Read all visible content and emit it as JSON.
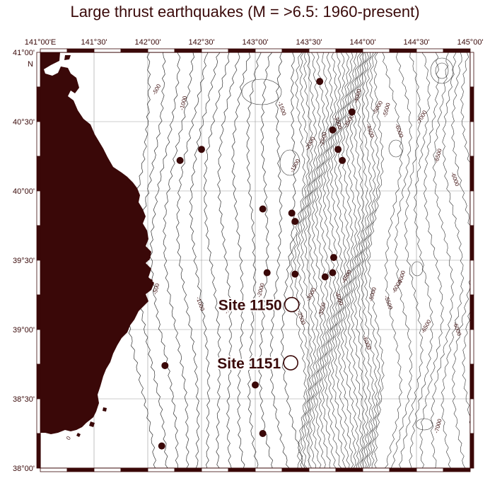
{
  "title": "Large thrust earthquakes (M = >6.5: 1960-present)",
  "colors": {
    "land": "#3a0808",
    "frame": "#3a0808",
    "contour": "#333333",
    "grid": "#999999",
    "text": "#3a0a0a"
  },
  "axes": {
    "lon_labels": [
      "141°00'E",
      "141°30'",
      "142°00'",
      "142°30'",
      "143°00'",
      "143°30'",
      "144°00'",
      "144°30'",
      "145°00'"
    ],
    "lat_labels": [
      "41°00'",
      "40°30'",
      "40°00'",
      "39°30'",
      "39°00'",
      "38°30'",
      "38°00'"
    ],
    "north_marker": "N",
    "lon_range": [
      141.0,
      145.0
    ],
    "lat_range": [
      38.0,
      41.0
    ]
  },
  "sites": [
    {
      "label": "Site 1150",
      "lon": 143.34,
      "lat": 39.18
    },
    {
      "label": "Site 1151",
      "lon": 143.33,
      "lat": 38.76
    }
  ],
  "earthquakes": [
    {
      "lon": 143.6,
      "lat": 40.79
    },
    {
      "lon": 143.9,
      "lat": 40.57
    },
    {
      "lon": 143.72,
      "lat": 40.44
    },
    {
      "lon": 143.77,
      "lat": 40.3
    },
    {
      "lon": 143.81,
      "lat": 40.22
    },
    {
      "lon": 142.5,
      "lat": 40.3
    },
    {
      "lon": 142.3,
      "lat": 40.22
    },
    {
      "lon": 143.07,
      "lat": 39.87
    },
    {
      "lon": 143.34,
      "lat": 39.84
    },
    {
      "lon": 143.37,
      "lat": 39.78
    },
    {
      "lon": 143.73,
      "lat": 39.52
    },
    {
      "lon": 143.11,
      "lat": 39.41
    },
    {
      "lon": 143.37,
      "lat": 39.4
    },
    {
      "lon": 143.72,
      "lat": 39.41
    },
    {
      "lon": 143.65,
      "lat": 39.38
    },
    {
      "lon": 142.16,
      "lat": 38.74
    },
    {
      "lon": 143.0,
      "lat": 38.6
    },
    {
      "lon": 143.07,
      "lat": 38.25
    },
    {
      "lon": 142.13,
      "lat": 38.16
    }
  ],
  "contour_labels": [
    {
      "text": "-500",
      "lon": 142.07,
      "lat": 40.69
    },
    {
      "text": "-1000",
      "lon": 142.33,
      "lat": 40.58
    },
    {
      "text": "-1500",
      "lon": 143.21,
      "lat": 40.64
    },
    {
      "text": "-2000",
      "lon": 143.49,
      "lat": 40.29
    },
    {
      "text": "-2500",
      "lon": 143.63,
      "lat": 40.32
    },
    {
      "text": "-3000",
      "lon": 143.73,
      "lat": 40.54
    },
    {
      "text": "-3500",
      "lon": 143.85,
      "lat": 40.45
    },
    {
      "text": "-4000",
      "lon": 143.95,
      "lat": 40.63
    },
    {
      "text": "-4500",
      "lon": 144.03,
      "lat": 40.48
    },
    {
      "text": "-5000",
      "lon": 144.12,
      "lat": 40.55
    },
    {
      "text": "-5500",
      "lon": 144.22,
      "lat": 40.53
    },
    {
      "text": "-6000",
      "lon": 144.3,
      "lat": 40.48
    },
    {
      "text": "-7000",
      "lon": 144.53,
      "lat": 40.48
    },
    {
      "text": "-6500",
      "lon": 144.7,
      "lat": 40.2
    },
    {
      "text": "-6000",
      "lon": 144.82,
      "lat": 40.13
    },
    {
      "text": "-1500",
      "lon": 143.35,
      "lat": 40.13
    },
    {
      "text": "-500",
      "lon": 142.08,
      "lat": 39.25
    },
    {
      "text": "-1000",
      "lon": 142.45,
      "lat": 39.23
    },
    {
      "text": "-1500",
      "lon": 142.74,
      "lat": 39.11
    },
    {
      "text": "-2000",
      "lon": 143.05,
      "lat": 39.23
    },
    {
      "text": "-2500",
      "lon": 143.39,
      "lat": 39.13
    },
    {
      "text": "-3000",
      "lon": 143.5,
      "lat": 39.2
    },
    {
      "text": "-3500",
      "lon": 143.62,
      "lat": 39.09
    },
    {
      "text": "-4000",
      "lon": 143.74,
      "lat": 39.27
    },
    {
      "text": "-4500",
      "lon": 143.83,
      "lat": 39.33
    },
    {
      "text": "-5000",
      "lon": 144.09,
      "lat": 39.2
    },
    {
      "text": "-5500",
      "lon": 144.2,
      "lat": 39.24
    },
    {
      "text": "-6000",
      "lon": 144.3,
      "lat": 39.26
    },
    {
      "text": "-7000",
      "lon": 144.36,
      "lat": 39.32
    },
    {
      "text": "-6000",
      "lon": 144.84,
      "lat": 39.05
    },
    {
      "text": "-6500",
      "lon": 144.57,
      "lat": 38.97
    },
    {
      "text": "-7000",
      "lon": 144.7,
      "lat": 38.25
    },
    {
      "text": "-6000",
      "lon": 144.0,
      "lat": 38.95
    },
    {
      "text": "0",
      "lon": 141.27,
      "lat": 38.2
    }
  ]
}
